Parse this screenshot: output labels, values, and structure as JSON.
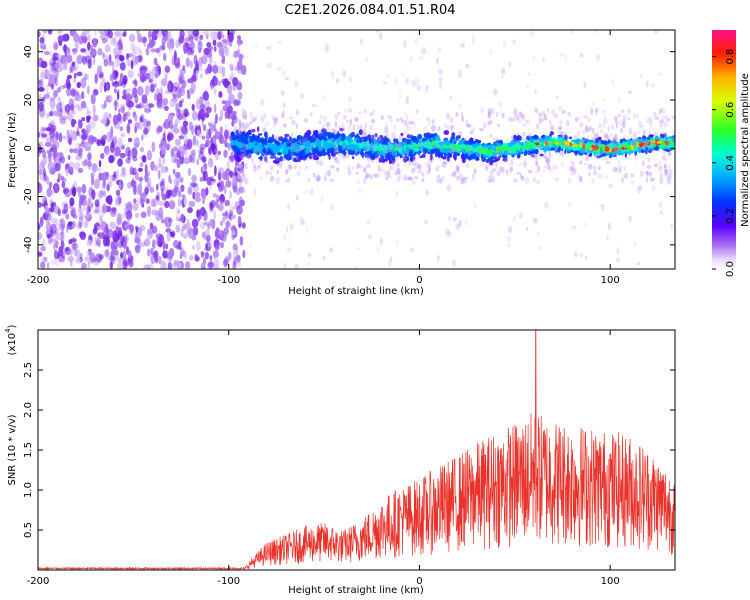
{
  "title": "C2E1.2026.084.01.51.R04",
  "chart_data": [
    {
      "type": "heatmap",
      "name": "spectrogram",
      "xlabel": "Height of straight line (km)",
      "ylabel": "Frequency (Hz)",
      "xlim": [
        -200,
        134
      ],
      "ylim": [
        -50,
        49
      ],
      "xticks": [
        -200,
        -100,
        0,
        100
      ],
      "xtick_labels": [
        "-200",
        "-100",
        "0",
        "100"
      ],
      "yticks": [
        -40,
        -20,
        0,
        20,
        40
      ],
      "ytick_labels": [
        "-40",
        "-20",
        "0",
        "20",
        "40"
      ],
      "noise_region": [
        -200,
        -92
      ],
      "signal_band": {
        "x": [
          -98,
          134
        ],
        "center_hz": 1,
        "halfwidth_hz": [
          8,
          4
        ]
      },
      "colorbar": {
        "label": "Normalized spectral amplitude",
        "range": [
          0,
          0.9
        ],
        "ticks": [
          0,
          0.2,
          0.4,
          0.6,
          0.8
        ],
        "tick_labels": [
          "0.0",
          "0.2",
          "0.4",
          "0.6",
          "0.8"
        ]
      }
    },
    {
      "type": "line",
      "name": "snr",
      "xlabel": "Height of straight line (km)",
      "ylabel": "SNR (10 * v/v)",
      "yscale_label": "(x10",
      "yscale_exp": "4",
      "xlim": [
        -200,
        134
      ],
      "ylim": [
        0,
        3.0
      ],
      "xticks": [
        -200,
        -100,
        0,
        100
      ],
      "xtick_labels": [
        "-200",
        "-100",
        "0",
        "100"
      ],
      "yticks": [
        0.5,
        1.0,
        1.5,
        2.0,
        2.5
      ],
      "ytick_labels": [
        "0.5",
        "1.0",
        "1.5",
        "2.0",
        "2.5"
      ],
      "color": "#e8322a",
      "envelope": {
        "x": [
          -200,
          -92,
          -88,
          -80,
          -70,
          -60,
          -50,
          -40,
          -30,
          -20,
          -10,
          0,
          10,
          20,
          30,
          40,
          50,
          60,
          70,
          80,
          90,
          100,
          110,
          120,
          130,
          134
        ],
        "y": [
          0.02,
          0.02,
          0.15,
          0.35,
          0.45,
          0.55,
          0.6,
          0.5,
          0.65,
          0.9,
          1.05,
          1.15,
          1.3,
          1.45,
          1.6,
          1.75,
          1.85,
          2.0,
          1.9,
          1.85,
          1.8,
          1.75,
          1.7,
          1.55,
          1.3,
          1.2
        ],
        "peak": {
          "x": 61,
          "y": 3.0
        }
      }
    }
  ],
  "colors": {
    "line": "#e8322a",
    "noise": "#7a2be6",
    "axis": "#000000"
  }
}
